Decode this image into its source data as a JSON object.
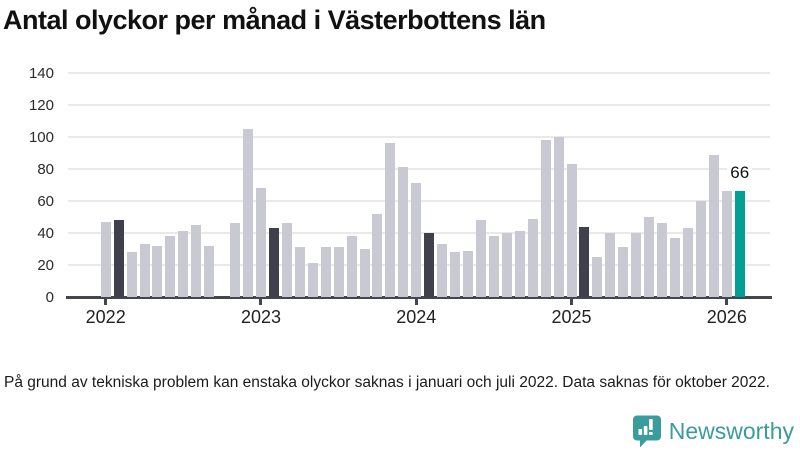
{
  "chart_data": {
    "type": "bar",
    "title": "Antal olyckor per månad i Västerbottens län",
    "xlabel": "",
    "ylabel": "",
    "ylim": [
      0,
      140
    ],
    "yticks": [
      0,
      20,
      40,
      60,
      80,
      100,
      120,
      140
    ],
    "grid": true,
    "legend": "none",
    "year_labels": [
      "2022",
      "2023",
      "2024",
      "2025",
      "2026"
    ],
    "year_tick_indices": [
      0,
      12,
      24,
      36,
      48
    ],
    "colors": {
      "normal": "#c9c9d3",
      "dark": "#40404c",
      "highlight": "#00a099"
    },
    "months": [
      {
        "label": "jan 2022",
        "value": 47,
        "role": "normal"
      },
      {
        "label": "feb 2022",
        "value": 48,
        "role": "dark"
      },
      {
        "label": "mar 2022",
        "value": 28,
        "role": "normal"
      },
      {
        "label": "apr 2022",
        "value": 33,
        "role": "normal"
      },
      {
        "label": "maj 2022",
        "value": 32,
        "role": "normal"
      },
      {
        "label": "jun 2022",
        "value": 38,
        "role": "normal"
      },
      {
        "label": "jul 2022",
        "value": 41,
        "role": "normal"
      },
      {
        "label": "aug 2022",
        "value": 45,
        "role": "normal"
      },
      {
        "label": "sep 2022",
        "value": 32,
        "role": "normal"
      },
      {
        "label": "okt 2022",
        "value": null,
        "role": "missing"
      },
      {
        "label": "nov 2022",
        "value": 46,
        "role": "normal"
      },
      {
        "label": "dec 2022",
        "value": 105,
        "role": "normal"
      },
      {
        "label": "jan 2023",
        "value": 68,
        "role": "normal"
      },
      {
        "label": "feb 2023",
        "value": 43,
        "role": "dark"
      },
      {
        "label": "mar 2023",
        "value": 46,
        "role": "normal"
      },
      {
        "label": "apr 2023",
        "value": 31,
        "role": "normal"
      },
      {
        "label": "maj 2023",
        "value": 21,
        "role": "normal"
      },
      {
        "label": "jun 2023",
        "value": 31,
        "role": "normal"
      },
      {
        "label": "jul 2023",
        "value": 31,
        "role": "normal"
      },
      {
        "label": "aug 2023",
        "value": 38,
        "role": "normal"
      },
      {
        "label": "sep 2023",
        "value": 30,
        "role": "normal"
      },
      {
        "label": "okt 2023",
        "value": 52,
        "role": "normal"
      },
      {
        "label": "nov 2023",
        "value": 96,
        "role": "normal"
      },
      {
        "label": "dec 2023",
        "value": 81,
        "role": "normal"
      },
      {
        "label": "jan 2024",
        "value": 71,
        "role": "normal"
      },
      {
        "label": "feb 2024",
        "value": 40,
        "role": "dark"
      },
      {
        "label": "mar 2024",
        "value": 33,
        "role": "normal"
      },
      {
        "label": "apr 2024",
        "value": 28,
        "role": "normal"
      },
      {
        "label": "maj 2024",
        "value": 29,
        "role": "normal"
      },
      {
        "label": "jun 2024",
        "value": 48,
        "role": "normal"
      },
      {
        "label": "jul 2024",
        "value": 38,
        "role": "normal"
      },
      {
        "label": "aug 2024",
        "value": 40,
        "role": "normal"
      },
      {
        "label": "sep 2024",
        "value": 41,
        "role": "normal"
      },
      {
        "label": "okt 2024",
        "value": 49,
        "role": "normal"
      },
      {
        "label": "nov 2024",
        "value": 98,
        "role": "normal"
      },
      {
        "label": "dec 2024",
        "value": 100,
        "role": "normal"
      },
      {
        "label": "jan 2025",
        "value": 83,
        "role": "normal"
      },
      {
        "label": "feb 2025",
        "value": 44,
        "role": "dark"
      },
      {
        "label": "mar 2025",
        "value": 25,
        "role": "normal"
      },
      {
        "label": "apr 2025",
        "value": 40,
        "role": "normal"
      },
      {
        "label": "maj 2025",
        "value": 31,
        "role": "normal"
      },
      {
        "label": "jun 2025",
        "value": 40,
        "role": "normal"
      },
      {
        "label": "jul 2025",
        "value": 50,
        "role": "normal"
      },
      {
        "label": "aug 2025",
        "value": 46,
        "role": "normal"
      },
      {
        "label": "sep 2025",
        "value": 37,
        "role": "normal"
      },
      {
        "label": "okt 2025",
        "value": 43,
        "role": "normal"
      },
      {
        "label": "nov 2025",
        "value": 60,
        "role": "normal"
      },
      {
        "label": "dec 2025",
        "value": 89,
        "role": "normal"
      },
      {
        "label": "jan 2026",
        "value": 66,
        "role": "normal"
      },
      {
        "label": "feb 2026",
        "value": 66,
        "role": "highlight"
      }
    ],
    "annotation": {
      "text": "66",
      "month_index": 49
    }
  },
  "footnote": "På grund av tekniska problem kan enstaka olyckor saknas i januari och juli 2022. Data saknas för oktober 2022.",
  "brand": {
    "name": "Newsworthy",
    "color": "#3b9c9d"
  }
}
